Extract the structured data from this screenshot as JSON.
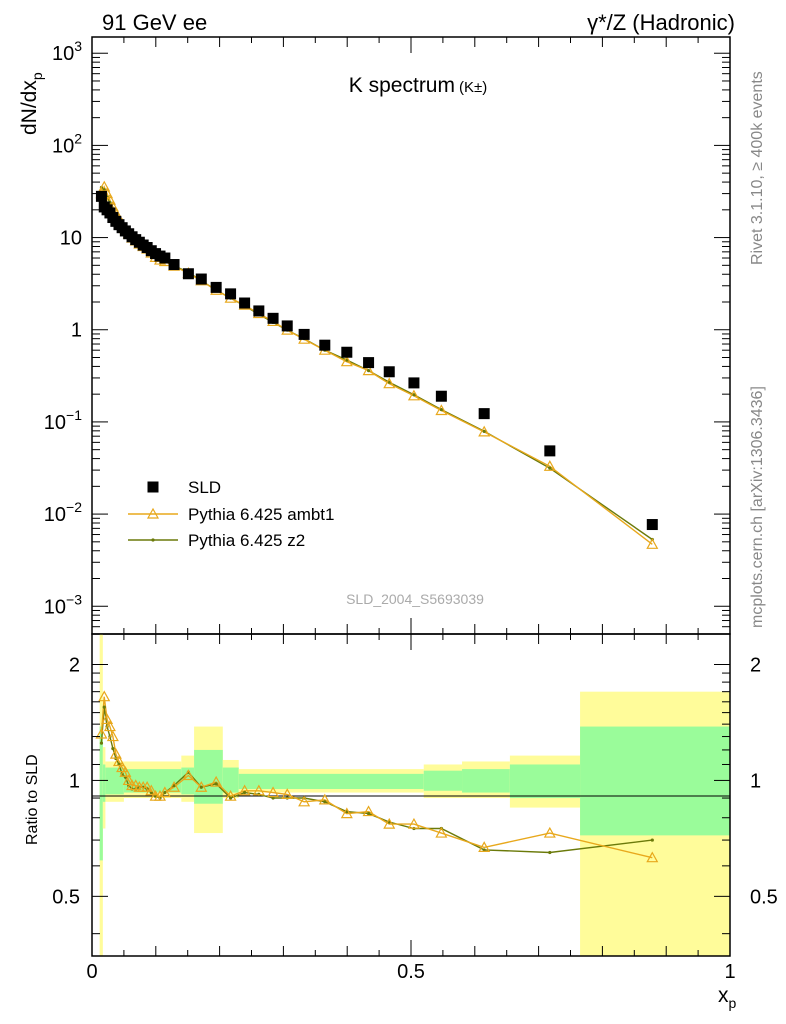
{
  "header": {
    "left": "91 GeV ee",
    "right_base": "γ*/Z",
    "right_rest": " (Hadronic)"
  },
  "side_labels": {
    "rivet": "Rivet 3.1.10, ≥ 400k events",
    "site": "mcplots.cern.ch [arXiv:1306.3436]"
  },
  "watermark": "SLD_2004_S5693039",
  "colors": {
    "data": "#000000",
    "ambt1": "#e8a81c",
    "z2": "#6b7a0a",
    "band_inner": "#9afc9a",
    "band_outer": "#fffc9a"
  },
  "chart_data": [
    {
      "type": "scatter",
      "title": "K spectrum",
      "title_sup": "(K±)",
      "ylabel": "dN/dx",
      "ylabel_sub": "p",
      "yscale": "log",
      "ylim": [
        0.0005,
        1500
      ],
      "xlim": [
        0,
        1
      ],
      "y_ticks": [
        {
          "v": 0.001,
          "b": "10",
          "e": "−3"
        },
        {
          "v": 0.01,
          "b": "10",
          "e": "−2"
        },
        {
          "v": 0.1,
          "b": "10",
          "e": "−1"
        },
        {
          "v": 1,
          "b": "1",
          "e": ""
        },
        {
          "v": 10,
          "b": "10",
          "e": ""
        },
        {
          "v": 100,
          "b": "10",
          "e": "2"
        },
        {
          "v": 1000,
          "b": "10",
          "e": "3"
        }
      ],
      "legend": [
        "SLD",
        "Pythia 6.425 ambt1",
        "Pythia 6.425 z2"
      ],
      "x": [
        0.0148,
        0.0192,
        0.0236,
        0.0281,
        0.0327,
        0.0374,
        0.0423,
        0.0472,
        0.0523,
        0.0575,
        0.0628,
        0.0685,
        0.0742,
        0.0802,
        0.0864,
        0.0929,
        0.0996,
        0.1066,
        0.1142,
        0.1286,
        0.1511,
        0.1713,
        0.1946,
        0.2172,
        0.2392,
        0.2615,
        0.2838,
        0.306,
        0.3325,
        0.3649,
        0.3994,
        0.4335,
        0.4659,
        0.5046,
        0.5476,
        0.6147,
        0.7176,
        0.8782
      ],
      "series": [
        {
          "name": "SLD",
          "values": [
            28.0,
            21.5,
            20.0,
            18.5,
            16.5,
            15.0,
            13.8,
            12.8,
            11.8,
            11.0,
            10.2,
            9.5,
            8.9,
            8.3,
            7.8,
            7.2,
            6.7,
            6.3,
            6.0,
            5.1,
            4.05,
            3.55,
            2.88,
            2.45,
            1.95,
            1.6,
            1.33,
            1.1,
            0.89,
            0.68,
            0.57,
            0.44,
            0.35,
            0.265,
            0.19,
            0.123,
            0.0485,
            0.0077
          ]
        },
        {
          "name": "Pythia 6.425 ambt1",
          "values": [
            30.0,
            35.5,
            30.0,
            25.5,
            21.5,
            18.3,
            15.8,
            14.0,
            12.4,
            11.0,
            9.9,
            9.2,
            8.5,
            8.0,
            7.5,
            6.8,
            6.1,
            5.7,
            5.5,
            4.9,
            4.1,
            3.4,
            2.68,
            2.2,
            1.85,
            1.5,
            1.23,
            0.99,
            0.79,
            0.6,
            0.45,
            0.36,
            0.26,
            0.192,
            0.133,
            0.078,
            0.033,
            0.0047
          ]
        },
        {
          "name": "Pythia 6.425 z2",
          "values": [
            35.0,
            33.0,
            27.5,
            24.0,
            20.0,
            17.0,
            15.2,
            13.3,
            12.0,
            10.7,
            9.6,
            9.0,
            8.5,
            8.0,
            7.4,
            6.7,
            6.1,
            5.7,
            5.6,
            4.95,
            4.2,
            3.4,
            2.7,
            2.2,
            1.82,
            1.47,
            1.2,
            0.99,
            0.8,
            0.6,
            0.47,
            0.36,
            0.27,
            0.197,
            0.136,
            0.079,
            0.0315,
            0.0053
          ]
        }
      ]
    },
    {
      "type": "line",
      "ylabel": "Ratio to SLD",
      "xlabel": "x",
      "xlabel_sub": "p",
      "yscale": "log",
      "ylim": [
        0.35,
        2.4
      ],
      "xlim": [
        0,
        1
      ],
      "y_ticks": [
        0.5,
        1,
        2
      ],
      "x_ticks": [
        0,
        0.5,
        1
      ],
      "uncertainty_bins": [
        {
          "x0": 0.012,
          "x1": 0.017,
          "inner": [
            0.62,
            1.38
          ],
          "outer": [
            0.35,
            2.4
          ]
        },
        {
          "x0": 0.017,
          "x1": 0.021,
          "inner": [
            0.88,
            1.1
          ],
          "outer": [
            0.75,
            1.22
          ]
        },
        {
          "x0": 0.021,
          "x1": 0.05,
          "inner": [
            0.92,
            1.08
          ],
          "outer": [
            0.88,
            1.12
          ]
        },
        {
          "x0": 0.05,
          "x1": 0.14,
          "inner": [
            0.93,
            1.07
          ],
          "outer": [
            0.9,
            1.12
          ]
        },
        {
          "x0": 0.14,
          "x1": 0.16,
          "inner": [
            0.92,
            1.08
          ],
          "outer": [
            0.88,
            1.16
          ]
        },
        {
          "x0": 0.16,
          "x1": 0.205,
          "inner": [
            0.87,
            1.2
          ],
          "outer": [
            0.73,
            1.38
          ]
        },
        {
          "x0": 0.205,
          "x1": 0.23,
          "inner": [
            0.93,
            1.08
          ],
          "outer": [
            0.9,
            1.13
          ]
        },
        {
          "x0": 0.23,
          "x1": 0.52,
          "inner": [
            0.95,
            1.04
          ],
          "outer": [
            0.93,
            1.07
          ]
        },
        {
          "x0": 0.52,
          "x1": 0.58,
          "inner": [
            0.94,
            1.06
          ],
          "outer": [
            0.9,
            1.1
          ]
        },
        {
          "x0": 0.58,
          "x1": 0.655,
          "inner": [
            0.93,
            1.07
          ],
          "outer": [
            0.9,
            1.12
          ]
        },
        {
          "x0": 0.655,
          "x1": 0.765,
          "inner": [
            0.9,
            1.1
          ],
          "outer": [
            0.85,
            1.16
          ]
        },
        {
          "x0": 0.765,
          "x1": 1.0,
          "inner": [
            0.72,
            1.38
          ],
          "outer": [
            0.35,
            1.7
          ]
        }
      ],
      "series": [
        {
          "name": "Pythia 6.425 ambt1",
          "values": [
            1.32,
            1.65,
            1.44,
            1.38,
            1.3,
            1.17,
            1.12,
            1.08,
            1.05,
            1.0,
            0.97,
            0.97,
            0.96,
            0.96,
            0.96,
            0.94,
            0.91,
            0.91,
            0.93,
            0.96,
            1.03,
            0.96,
            0.99,
            0.91,
            0.94,
            0.94,
            0.93,
            0.92,
            0.88,
            0.89,
            0.82,
            0.83,
            0.77,
            0.77,
            0.73,
            0.67,
            0.73,
            0.63
          ]
        },
        {
          "name": "Pythia 6.425 z2",
          "values": [
            1.25,
            1.55,
            1.38,
            1.3,
            1.21,
            1.14,
            1.1,
            1.04,
            1.02,
            0.97,
            0.95,
            0.95,
            0.96,
            0.96,
            0.95,
            0.93,
            0.91,
            0.9,
            0.93,
            0.97,
            1.05,
            0.96,
            0.98,
            0.9,
            0.93,
            0.92,
            0.9,
            0.9,
            0.9,
            0.88,
            0.83,
            0.82,
            0.78,
            0.75,
            0.75,
            0.66,
            0.65,
            0.7
          ]
        }
      ]
    }
  ]
}
